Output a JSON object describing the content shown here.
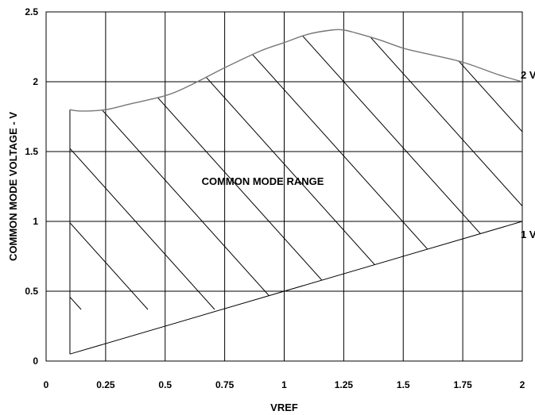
{
  "chart_data": {
    "type": "area",
    "title": "",
    "xlabel": "VREF",
    "ylabel": "COMMON MODE VOLTAGE - V",
    "xlim": [
      0,
      2
    ],
    "ylim": [
      0,
      2.5
    ],
    "x_ticks": [
      0,
      0.25,
      0.5,
      0.75,
      1,
      1.25,
      1.5,
      1.75,
      2
    ],
    "x_tick_labels": [
      "0",
      "0.25",
      "0.5",
      "0.75",
      "1",
      "1.25",
      "1.5",
      "1.75",
      "2"
    ],
    "y_ticks": [
      0,
      0.5,
      1,
      1.5,
      2,
      2.5
    ],
    "y_tick_labels": [
      "0",
      "0.5",
      "1",
      "1.5",
      "2",
      "2.5"
    ],
    "grid": true,
    "fill_pattern": "diagonal-hatch",
    "series": [
      {
        "name": "",
        "role": "upper-bound",
        "x": [
          0.1,
          0.15,
          0.25,
          0.35,
          0.5,
          0.6,
          0.75,
          0.9,
          1.0,
          1.1,
          1.2,
          1.25,
          1.3,
          1.4,
          1.5,
          1.6,
          1.75,
          1.9,
          2.0
        ],
        "y": [
          1.8,
          1.79,
          1.8,
          1.84,
          1.9,
          1.97,
          2.1,
          2.22,
          2.28,
          2.34,
          2.37,
          2.37,
          2.35,
          2.3,
          2.24,
          2.2,
          2.14,
          2.05,
          2.0
        ]
      },
      {
        "name": "",
        "role": "lower-bound",
        "x": [
          0.1,
          2.0
        ],
        "y": [
          0.05,
          1.0
        ]
      }
    ],
    "annotations": [
      {
        "text": "COMMON MODE RANGE",
        "x": 1.0,
        "y": 1.29
      },
      {
        "text": "2 V",
        "x": 2.0,
        "y": 2.05
      },
      {
        "text": "1 V",
        "x": 2.0,
        "y": 0.91
      }
    ]
  }
}
